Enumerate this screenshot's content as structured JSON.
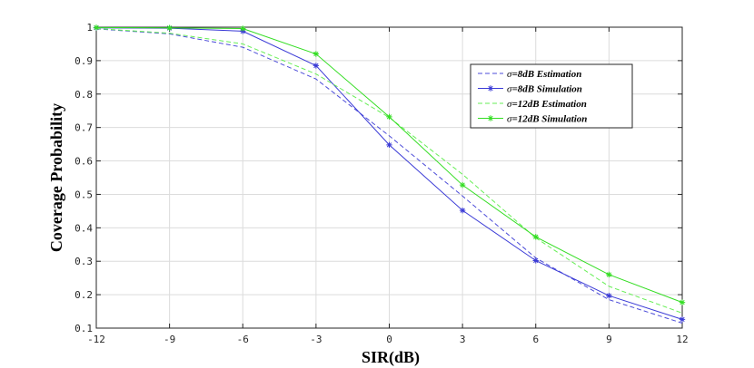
{
  "chart_data": {
    "type": "line",
    "xlabel": "SIR(dB)",
    "ylabel": "Coverage Probability",
    "xlim": [
      -12,
      12
    ],
    "ylim": [
      0.1,
      1
    ],
    "xticks": [
      -12,
      -9,
      -6,
      -3,
      0,
      3,
      6,
      9,
      12
    ],
    "xtick_labels": [
      "-12",
      "-9",
      "-6",
      "-3",
      "0",
      "3",
      "6",
      "9",
      "12"
    ],
    "yticks": [
      0.1,
      0.2,
      0.3,
      0.4,
      0.5,
      0.6,
      0.7,
      0.8,
      0.9,
      1
    ],
    "ytick_labels": [
      "0.1",
      "0.2",
      "0.3",
      "0.4",
      "0.5",
      "0.6",
      "0.7",
      "0.8",
      "0.9",
      "1"
    ],
    "grid": true,
    "legend_position": "top-right",
    "x": [
      -12,
      -9,
      -6,
      -3,
      0,
      3,
      6,
      9,
      12
    ],
    "series": [
      {
        "name": "σ=8dB Estimation",
        "legend_sigma": "σ",
        "legend_rest": "=8dB Estimation",
        "style": "dashed",
        "marker": "none",
        "color": "#4b4bd8",
        "values": [
          0.995,
          0.98,
          0.94,
          0.845,
          0.675,
          0.495,
          0.31,
          0.185,
          0.115
        ]
      },
      {
        "name": "σ=8dB Simulation",
        "legend_sigma": "σ",
        "legend_rest": "=8dB Simulation",
        "style": "solid",
        "marker": "asterisk",
        "color": "#3a3ad6",
        "values": [
          0.998,
          0.997,
          0.988,
          0.885,
          0.648,
          0.452,
          0.302,
          0.197,
          0.126
        ]
      },
      {
        "name": "σ=12dB Estimation",
        "legend_sigma": "σ",
        "legend_rest": "=12dB Estimation",
        "style": "dashed",
        "marker": "none",
        "color": "#66ee55",
        "values": [
          0.996,
          0.982,
          0.95,
          0.86,
          0.73,
          0.56,
          0.37,
          0.225,
          0.145
        ]
      },
      {
        "name": "σ=12dB Simulation",
        "legend_sigma": "σ",
        "legend_rest": "=12dB Simulation",
        "style": "solid",
        "marker": "asterisk",
        "color": "#33dd22",
        "values": [
          0.999,
          0.998,
          0.996,
          0.92,
          0.732,
          0.528,
          0.373,
          0.26,
          0.177
        ]
      }
    ]
  }
}
